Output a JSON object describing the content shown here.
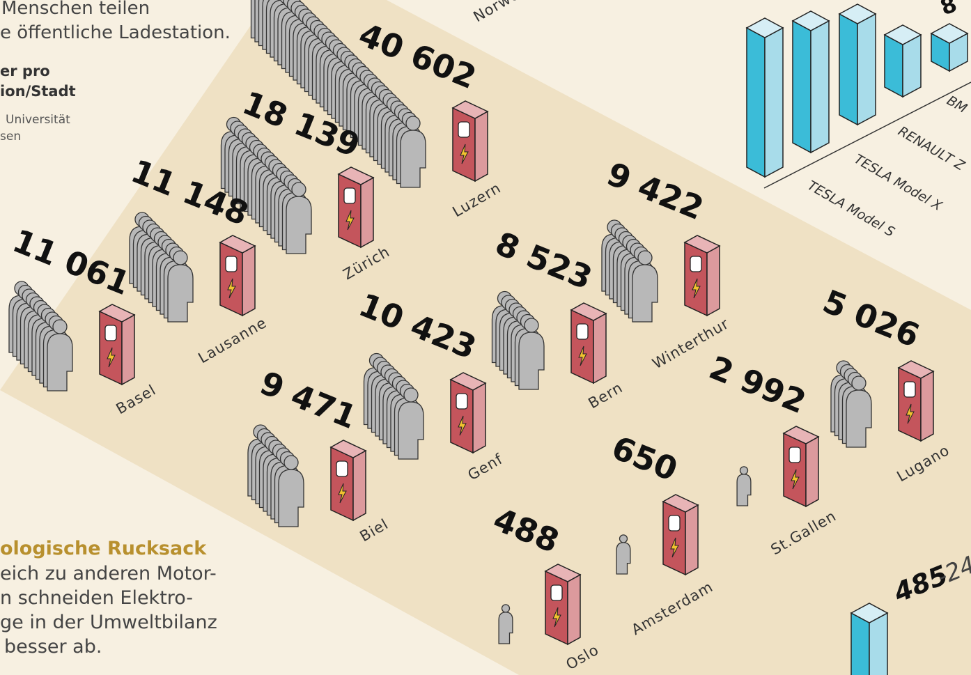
{
  "intro": {
    "lines": [
      "Menschen teilen",
      "e öffentliche Ladestation."
    ]
  },
  "legend": {
    "title_lines": [
      "er pro",
      "ion/Stadt"
    ],
    "source_lines": [
      "Universität",
      "sen"
    ]
  },
  "country_label": "Norwe",
  "cities": [
    {
      "name": "Luzern",
      "count": "40 602"
    },
    {
      "name": "Zürich",
      "count": "18 139"
    },
    {
      "name": "Lausanne",
      "count": "11 148"
    },
    {
      "name": "Basel",
      "count": "11 061"
    },
    {
      "name": "Winterthur",
      "count": "9 422"
    },
    {
      "name": "Bern",
      "count": "8 523"
    },
    {
      "name": "Genf",
      "count": "10 423"
    },
    {
      "name": "Biel",
      "count": "9 471"
    },
    {
      "name": "Lugano",
      "count": "5 026"
    },
    {
      "name": "St.Gallen",
      "count": "2 992"
    },
    {
      "name": "Amsterdam",
      "count": "650"
    },
    {
      "name": "Oslo",
      "count": "488"
    }
  ],
  "rucksack": {
    "title": "ologische Rucksack",
    "lines": [
      "eich zu anderen Motor-",
      "n schneiden Elektro-",
      "ge in der Umweltbilanz",
      "besser ab."
    ]
  },
  "cars": {
    "top_label": "8",
    "models": [
      "BM",
      "RENAULT Z",
      "TESLA Model X",
      "TESLA Model S"
    ]
  },
  "range": {
    "value": "485",
    "rest": "-24"
  }
}
